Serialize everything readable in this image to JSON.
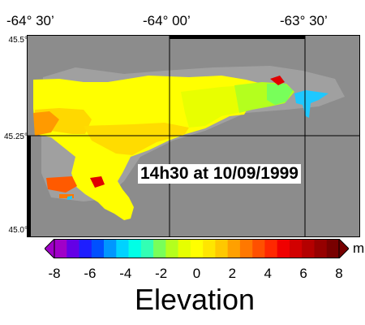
{
  "map": {
    "lon_labels": [
      "-64° 30’",
      "-64° 00’",
      "-63° 30’"
    ],
    "lat_labels": [
      "45.5°",
      "45.25°",
      "45.0°"
    ],
    "timestamp": "14h30 at 10/09/1999"
  },
  "colorbar": {
    "min": -8,
    "max": 8,
    "tick_labels": [
      "-8",
      "-6",
      "-4",
      "-2",
      "0",
      "2",
      "4",
      "6",
      "8"
    ],
    "unit": "m",
    "title": "Elevation",
    "colors": [
      "#a000c8",
      "#6400e6",
      "#1e1eff",
      "#0050ff",
      "#0096ff",
      "#00d2ff",
      "#00ffe6",
      "#32ffb4",
      "#78ff5a",
      "#b4ff1e",
      "#e6ff00",
      "#ffff00",
      "#ffe600",
      "#ffc800",
      "#ffa000",
      "#ff7800",
      "#ff5000",
      "#ff2800",
      "#f00000",
      "#d20000",
      "#b40000",
      "#960000",
      "#780000"
    ]
  },
  "land_color": "#8c8c8c",
  "frame_color": "#000000"
}
